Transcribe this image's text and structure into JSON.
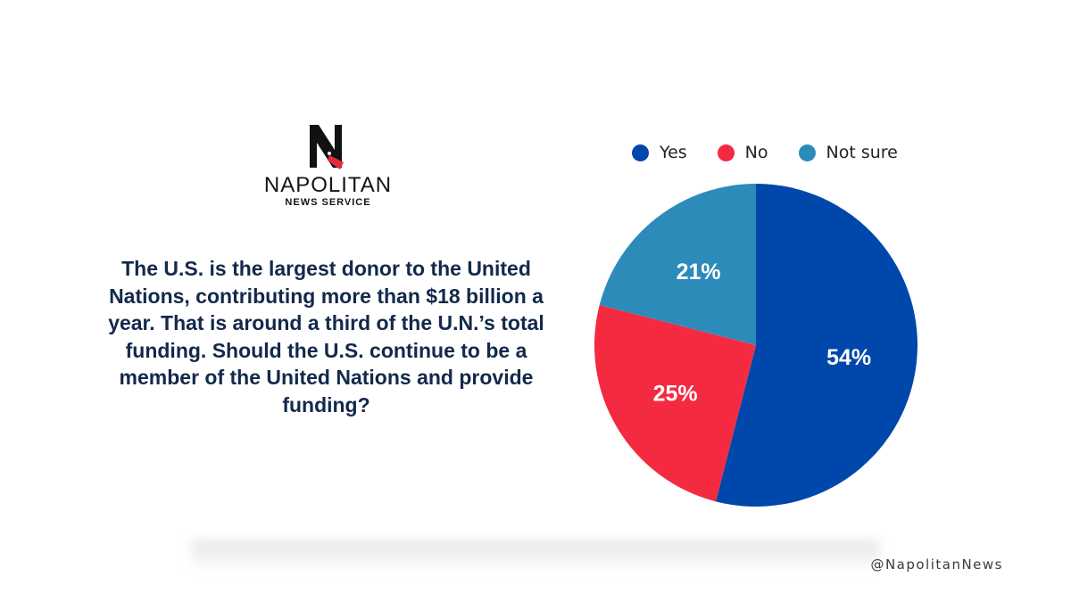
{
  "brand": {
    "name": "NAPOLITAN",
    "subtitle": "NEWS SERVICE",
    "logo_icon": "napolitan-n-bird-logo"
  },
  "question": "The U.S. is the largest donor to the United Nations, contributing more than $18 billion a year. That is around a third of the U.N.’s total funding. Should the U.S. continue to be a member of the United Nations and provide funding?",
  "handle": "@NapolitanNews",
  "chart_data": {
    "type": "pie",
    "title": "",
    "legend_position": "top",
    "slices": [
      {
        "label": "Yes",
        "value": 54,
        "display": "54%",
        "color": "#0047ab"
      },
      {
        "label": "No",
        "value": 25,
        "display": "25%",
        "color": "#f42a41"
      },
      {
        "label": "Not sure",
        "value": 21,
        "display": "21%",
        "color": "#2d8bba"
      }
    ]
  }
}
